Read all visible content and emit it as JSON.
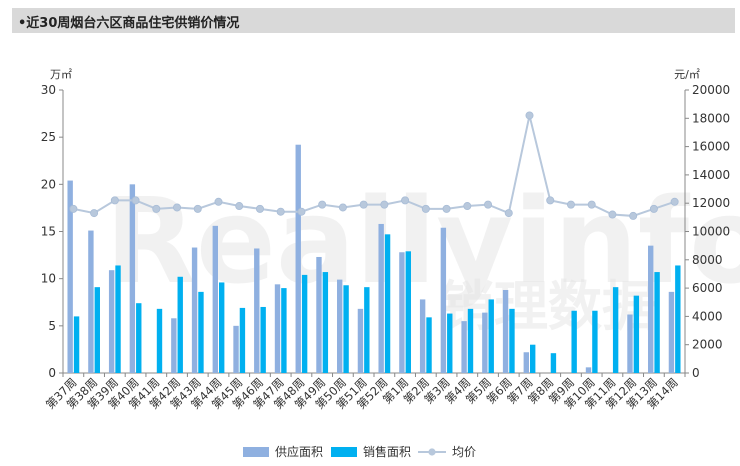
{
  "title": "•近30周烟台六区商品住宅供销价情况",
  "watermark": {
    "latin": "Reallyinfo",
    "cjk": "销理数据"
  },
  "colors": {
    "supply": "#8fb0e0",
    "sales": "#00b0f0",
    "price": "#b8c8dc",
    "axis": "#888888"
  },
  "chart_data": {
    "type": "bar",
    "categories": [
      "第37周",
      "第38周",
      "第39周",
      "第40周",
      "第41周",
      "第42周",
      "第43周",
      "第44周",
      "第45周",
      "第46周",
      "第47周",
      "第48周",
      "第49周",
      "第50周",
      "第51周",
      "第52周",
      "第1周",
      "第2周",
      "第3周",
      "第4周",
      "第5周",
      "第6周",
      "第7周",
      "第8周",
      "第9周",
      "第10周",
      "第11周",
      "第12周",
      "第13周",
      "第14周"
    ],
    "series": [
      {
        "name": "供应面积",
        "axis": "left",
        "kind": "bar",
        "values": [
          20.4,
          15.1,
          10.9,
          20.0,
          0,
          5.8,
          13.3,
          15.6,
          5.0,
          13.2,
          9.4,
          24.2,
          12.3,
          9.9,
          6.8,
          15.8,
          12.8,
          7.8,
          15.4,
          5.5,
          6.4,
          8.8,
          2.2,
          0,
          0,
          0.6,
          0,
          6.2,
          13.5,
          8.6
        ]
      },
      {
        "name": "销售面积",
        "axis": "left",
        "kind": "bar",
        "values": [
          6.0,
          9.1,
          11.4,
          7.4,
          6.8,
          10.2,
          8.6,
          9.6,
          6.9,
          7.0,
          9.0,
          10.4,
          10.7,
          9.3,
          9.1,
          14.7,
          12.9,
          5.9,
          6.3,
          6.8,
          7.8,
          6.8,
          3.0,
          2.1,
          6.6,
          6.6,
          9.1,
          8.2,
          10.7,
          11.4
        ]
      },
      {
        "name": "均价",
        "axis": "right",
        "kind": "line",
        "values": [
          11600,
          11300,
          12200,
          12200,
          11600,
          11700,
          11600,
          12100,
          11800,
          11600,
          11400,
          11400,
          11900,
          11700,
          11900,
          11900,
          12200,
          11600,
          11600,
          11800,
          11900,
          11300,
          18200,
          12200,
          11900,
          11900,
          11200,
          11100,
          11600,
          12100
        ]
      }
    ],
    "y_left": {
      "unit": "万㎡",
      "min": 0,
      "max": 30,
      "ticks": [
        0,
        5,
        10,
        15,
        20,
        25,
        30
      ]
    },
    "y_right": {
      "unit": "元/㎡",
      "min": 0,
      "max": 20000,
      "ticks": [
        0,
        2000,
        4000,
        6000,
        8000,
        10000,
        12000,
        14000,
        16000,
        18000,
        20000
      ]
    },
    "legend": {
      "position": "bottom-center",
      "items": [
        "供应面积",
        "销售面积",
        "均价"
      ]
    },
    "grid": false
  }
}
